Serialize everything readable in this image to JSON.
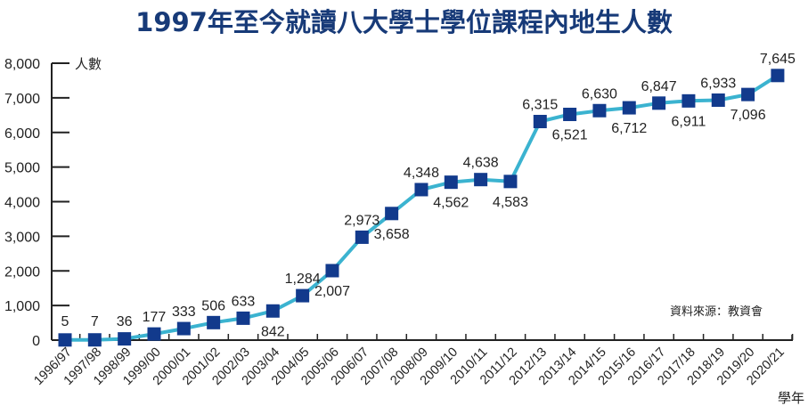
{
  "title": "1997年至今就讀八大學士學位課程內地生人數",
  "y_unit_label": "人數",
  "x_unit_label": "學年",
  "source_note": "資料來源：教資會",
  "colors": {
    "title": "#173a78",
    "line": "#3bb3d0",
    "marker": "#123a8c",
    "axis": "#222222"
  },
  "chart_data": {
    "type": "line",
    "title": "1997年至今就讀八大學士學位課程內地生人數",
    "xlabel": "學年",
    "ylabel": "人數",
    "ylim": [
      0,
      8000
    ],
    "yticks": [
      0,
      1000,
      2000,
      3000,
      4000,
      5000,
      6000,
      7000,
      8000
    ],
    "ytick_labels": [
      "0",
      "1,000",
      "2,000",
      "3,000",
      "4,000",
      "5,000",
      "6,000",
      "7,000",
      "8,000"
    ],
    "grid": false,
    "legend": null,
    "categories": [
      "1996/97",
      "1997/98",
      "1998/99",
      "1999/00",
      "2000/01",
      "2001/02",
      "2002/03",
      "2003/04",
      "2004/05",
      "2005/06",
      "2006/07",
      "2007/08",
      "2008/09",
      "2009/10",
      "2010/11",
      "2011/12",
      "2012/13",
      "2013/14",
      "2014/15",
      "2015/16",
      "2016/17",
      "2017/18",
      "2018/19",
      "2019/20",
      "2020/21"
    ],
    "values": [
      5,
      7,
      36,
      177,
      333,
      506,
      633,
      842,
      1284,
      2007,
      2973,
      3658,
      4348,
      4562,
      4638,
      4583,
      6315,
      6521,
      6630,
      6712,
      6847,
      6911,
      6933,
      7096,
      7645
    ],
    "value_labels": [
      "5",
      "7",
      "36",
      "177",
      "333",
      "506",
      "633",
      "842",
      "1,284",
      "2,007",
      "2,973",
      "3,658",
      "4,348",
      "4,562",
      "4,638",
      "4,583",
      "6,315",
      "6,521",
      "6,630",
      "6,712",
      "6,847",
      "6,911",
      "6,933",
      "7,096",
      "7,645"
    ],
    "label_positions": [
      "above",
      "above",
      "above",
      "above",
      "above",
      "above",
      "above",
      "below",
      "above",
      "below",
      "above",
      "below",
      "above",
      "below",
      "above",
      "below",
      "above",
      "below",
      "above",
      "below",
      "above",
      "below",
      "above",
      "below",
      "above"
    ],
    "annotations": [
      "資料來源：教資會"
    ]
  }
}
